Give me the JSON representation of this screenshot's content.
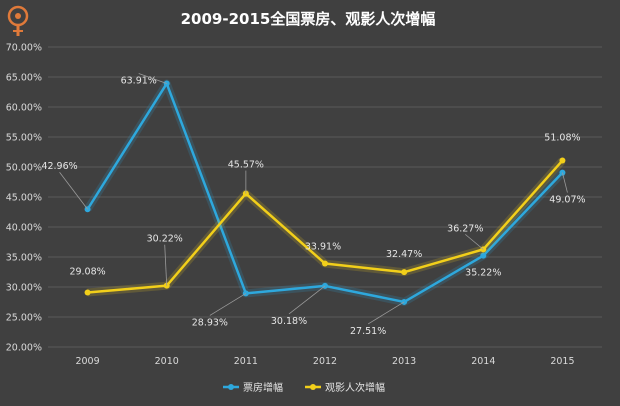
{
  "chart_data": {
    "type": "line",
    "title": "2009-2015全国票房、观影人次增幅",
    "categories": [
      "2009",
      "2010",
      "2011",
      "2012",
      "2013",
      "2014",
      "2015"
    ],
    "ylim": [
      20,
      70
    ],
    "ytick_step": 5,
    "ytick_labels": [
      "20.00%",
      "25.00%",
      "30.00%",
      "35.00%",
      "40.00%",
      "45.00%",
      "50.00%",
      "55.00%",
      "60.00%",
      "65.00%",
      "70.00%"
    ],
    "grid": true,
    "legend_position": "bottom",
    "series": [
      {
        "name": "票房增幅",
        "color": "#2ea8dd",
        "values": [
          42.96,
          63.91,
          28.93,
          30.18,
          27.51,
          35.22,
          49.07
        ],
        "labels": [
          "42.96%",
          "63.91%",
          "28.93%",
          "30.18%",
          "27.51%",
          "35.22%",
          "49.07%"
        ]
      },
      {
        "name": "观影人次增幅",
        "color": "#f2cf1a",
        "values": [
          29.08,
          30.22,
          45.57,
          33.91,
          32.47,
          36.27,
          51.08
        ],
        "labels": [
          "29.08%",
          "30.22%",
          "45.57%",
          "33.91%",
          "32.47%",
          "36.27%",
          "51.08%"
        ]
      }
    ]
  }
}
